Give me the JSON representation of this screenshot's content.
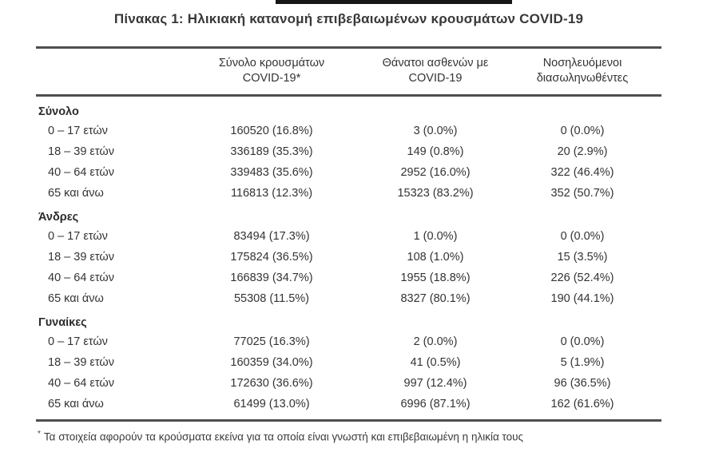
{
  "title": "Πίνακας 1: Ηλικιακή κατανομή επιβεβαιωμένων κρουσμάτων COVID-19",
  "table": {
    "columns": [
      {
        "line1": "Σύνολο κρουσμάτων",
        "line2": "COVID-19*"
      },
      {
        "line1": "Θάνατοι ασθενών με",
        "line2": "COVID-19"
      },
      {
        "line1": "Νοσηλευόμενοι",
        "line2": "διασωληνωθέντες"
      }
    ],
    "sections": [
      {
        "label": "Σύνολο",
        "rows": [
          {
            "age": "0 – 17 ετών",
            "cases": "160520 (16.8%)",
            "deaths": "3 (0.0%)",
            "intubated": "0 (0.0%)"
          },
          {
            "age": "18 – 39 ετών",
            "cases": "336189 (35.3%)",
            "deaths": "149 (0.8%)",
            "intubated": "20 (2.9%)"
          },
          {
            "age": "40 – 64 ετών",
            "cases": "339483 (35.6%)",
            "deaths": "2952 (16.0%)",
            "intubated": "322 (46.4%)"
          },
          {
            "age": "65 και άνω",
            "cases": "116813 (12.3%)",
            "deaths": "15323 (83.2%)",
            "intubated": "352 (50.7%)"
          }
        ]
      },
      {
        "label": "Άνδρες",
        "rows": [
          {
            "age": "0 – 17 ετών",
            "cases": "83494 (17.3%)",
            "deaths": "1 (0.0%)",
            "intubated": "0 (0.0%)"
          },
          {
            "age": "18 – 39 ετών",
            "cases": "175824 (36.5%)",
            "deaths": "108 (1.0%)",
            "intubated": "15 (3.5%)"
          },
          {
            "age": "40 – 64 ετών",
            "cases": "166839 (34.7%)",
            "deaths": "1955 (18.8%)",
            "intubated": "226 (52.4%)"
          },
          {
            "age": "65 και άνω",
            "cases": "55308 (11.5%)",
            "deaths": "8327 (80.1%)",
            "intubated": "190 (44.1%)"
          }
        ]
      },
      {
        "label": "Γυναίκες",
        "rows": [
          {
            "age": "0 – 17 ετών",
            "cases": "77025 (16.3%)",
            "deaths": "2 (0.0%)",
            "intubated": "0 (0.0%)"
          },
          {
            "age": "18 – 39 ετών",
            "cases": "160359 (34.0%)",
            "deaths": "41 (0.5%)",
            "intubated": "5 (1.9%)"
          },
          {
            "age": "40 – 64 ετών",
            "cases": "172630 (36.6%)",
            "deaths": "997 (12.4%)",
            "intubated": "96 (36.5%)"
          },
          {
            "age": "65 και άνω",
            "cases": "61499 (13.0%)",
            "deaths": "6996 (87.1%)",
            "intubated": "162 (61.6%)"
          }
        ]
      }
    ]
  },
  "footnote": {
    "marker": "*",
    "text": "Τα στοιχεία αφορούν τα κρούσματα εκείνα για τα οποία είναι γνωστή και επιβεβαιωμένη η ηλικία τους"
  },
  "colors": {
    "background": "#ffffff",
    "text": "#333333",
    "rule": "#4f4f4f",
    "banner": "#161616"
  }
}
